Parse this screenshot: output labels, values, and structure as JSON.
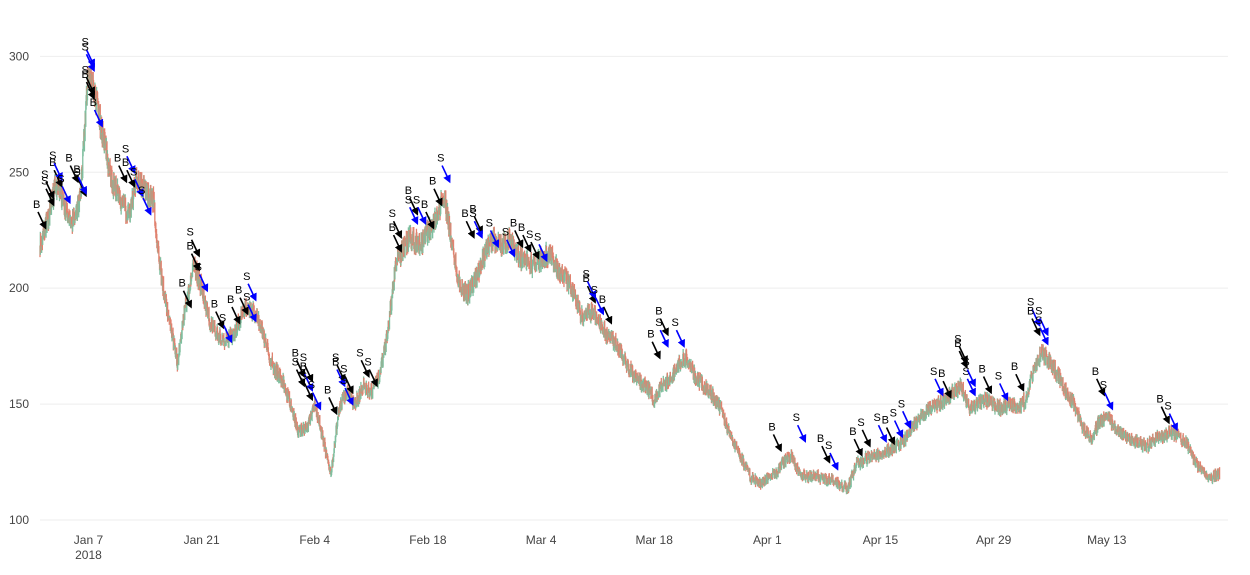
{
  "chart_data": {
    "type": "candlestick",
    "title": "",
    "xlabel": "",
    "ylabel": "",
    "ylim": [
      100,
      320
    ],
    "xlim": [
      "2018-01-01",
      "2018-05-28"
    ],
    "grid": true,
    "legend": "none",
    "colors": {
      "up": "#7fbf9f",
      "down": "#e0826f",
      "buy_arrow": "#000000",
      "sell_arrow": "#0000ff",
      "grid": "#eeeeee"
    },
    "y_ticks": [
      {
        "value": 100,
        "label": "100"
      },
      {
        "value": 150,
        "label": "150"
      },
      {
        "value": 200,
        "label": "200"
      },
      {
        "value": 250,
        "label": "250"
      },
      {
        "value": 300,
        "label": "300"
      }
    ],
    "x_ticks": [
      {
        "date": "2018-01-07",
        "label": "Jan 7",
        "sublabel": "2018"
      },
      {
        "date": "2018-01-21",
        "label": "Jan 21",
        "sublabel": ""
      },
      {
        "date": "2018-02-04",
        "label": "Feb 4",
        "sublabel": ""
      },
      {
        "date": "2018-02-18",
        "label": "Feb 18",
        "sublabel": ""
      },
      {
        "date": "2018-03-04",
        "label": "Mar 4",
        "sublabel": ""
      },
      {
        "date": "2018-03-18",
        "label": "Mar 18",
        "sublabel": ""
      },
      {
        "date": "2018-04-01",
        "label": "Apr 1",
        "sublabel": ""
      },
      {
        "date": "2018-04-15",
        "label": "Apr 15",
        "sublabel": ""
      },
      {
        "date": "2018-04-29",
        "label": "Apr 29",
        "sublabel": ""
      },
      {
        "date": "2018-05-13",
        "label": "May 13",
        "sublabel": ""
      }
    ],
    "price_path": [
      [
        "2018-01-01",
        218
      ],
      [
        "2018-01-02",
        230
      ],
      [
        "2018-01-03",
        245
      ],
      [
        "2018-01-04",
        236
      ],
      [
        "2018-01-05",
        228
      ],
      [
        "2018-01-06",
        240
      ],
      [
        "2018-01-07",
        295
      ],
      [
        "2018-01-08",
        280
      ],
      [
        "2018-01-09",
        262
      ],
      [
        "2018-01-10",
        245
      ],
      [
        "2018-01-11",
        238
      ],
      [
        "2018-01-12",
        232
      ],
      [
        "2018-01-13",
        248
      ],
      [
        "2018-01-14",
        242
      ],
      [
        "2018-01-15",
        238
      ],
      [
        "2018-01-16",
        205
      ],
      [
        "2018-01-17",
        185
      ],
      [
        "2018-01-18",
        168
      ],
      [
        "2018-01-19",
        192
      ],
      [
        "2018-01-20",
        210
      ],
      [
        "2018-01-21",
        200
      ],
      [
        "2018-01-22",
        185
      ],
      [
        "2018-01-23",
        180
      ],
      [
        "2018-01-24",
        178
      ],
      [
        "2018-01-25",
        180
      ],
      [
        "2018-01-26",
        190
      ],
      [
        "2018-01-27",
        192
      ],
      [
        "2018-01-28",
        187
      ],
      [
        "2018-01-29",
        175
      ],
      [
        "2018-01-30",
        165
      ],
      [
        "2018-01-31",
        160
      ],
      [
        "2018-02-01",
        150
      ],
      [
        "2018-02-02",
        138
      ],
      [
        "2018-02-03",
        140
      ],
      [
        "2018-02-04",
        150
      ],
      [
        "2018-02-05",
        135
      ],
      [
        "2018-02-06",
        120
      ],
      [
        "2018-02-07",
        148
      ],
      [
        "2018-02-08",
        155
      ],
      [
        "2018-02-09",
        150
      ],
      [
        "2018-02-10",
        158
      ],
      [
        "2018-02-11",
        155
      ],
      [
        "2018-02-12",
        162
      ],
      [
        "2018-02-13",
        180
      ],
      [
        "2018-02-14",
        210
      ],
      [
        "2018-02-15",
        218
      ],
      [
        "2018-02-16",
        222
      ],
      [
        "2018-02-17",
        218
      ],
      [
        "2018-02-18",
        225
      ],
      [
        "2018-02-19",
        230
      ],
      [
        "2018-02-20",
        240
      ],
      [
        "2018-02-21",
        218
      ],
      [
        "2018-02-22",
        200
      ],
      [
        "2018-02-23",
        198
      ],
      [
        "2018-02-24",
        205
      ],
      [
        "2018-02-25",
        215
      ],
      [
        "2018-02-26",
        222
      ],
      [
        "2018-02-27",
        218
      ],
      [
        "2018-02-28",
        222
      ],
      [
        "2018-03-01",
        215
      ],
      [
        "2018-03-02",
        212
      ],
      [
        "2018-03-03",
        210
      ],
      [
        "2018-03-04",
        213
      ],
      [
        "2018-03-05",
        215
      ],
      [
        "2018-03-06",
        208
      ],
      [
        "2018-03-07",
        205
      ],
      [
        "2018-03-08",
        198
      ],
      [
        "2018-03-09",
        188
      ],
      [
        "2018-03-10",
        190
      ],
      [
        "2018-03-11",
        187
      ],
      [
        "2018-03-12",
        180
      ],
      [
        "2018-03-13",
        178
      ],
      [
        "2018-03-14",
        172
      ],
      [
        "2018-03-15",
        165
      ],
      [
        "2018-03-16",
        160
      ],
      [
        "2018-03-17",
        158
      ],
      [
        "2018-03-18",
        152
      ],
      [
        "2018-03-19",
        158
      ],
      [
        "2018-03-20",
        160
      ],
      [
        "2018-03-21",
        168
      ],
      [
        "2018-03-22",
        170
      ],
      [
        "2018-03-23",
        162
      ],
      [
        "2018-03-24",
        158
      ],
      [
        "2018-03-25",
        155
      ],
      [
        "2018-03-26",
        150
      ],
      [
        "2018-03-27",
        140
      ],
      [
        "2018-03-28",
        132
      ],
      [
        "2018-03-29",
        125
      ],
      [
        "2018-03-30",
        118
      ],
      [
        "2018-03-31",
        116
      ],
      [
        "2018-04-01",
        118
      ],
      [
        "2018-04-02",
        120
      ],
      [
        "2018-04-03",
        125
      ],
      [
        "2018-04-04",
        128
      ],
      [
        "2018-04-05",
        120
      ],
      [
        "2018-04-06",
        118
      ],
      [
        "2018-04-07",
        119
      ],
      [
        "2018-04-08",
        118
      ],
      [
        "2018-04-09",
        117
      ],
      [
        "2018-04-10",
        115
      ],
      [
        "2018-04-11",
        114
      ],
      [
        "2018-04-12",
        124
      ],
      [
        "2018-04-13",
        126
      ],
      [
        "2018-04-14",
        128
      ],
      [
        "2018-04-15",
        128
      ],
      [
        "2018-04-16",
        130
      ],
      [
        "2018-04-17",
        132
      ],
      [
        "2018-04-18",
        135
      ],
      [
        "2018-04-19",
        140
      ],
      [
        "2018-04-20",
        145
      ],
      [
        "2018-04-21",
        148
      ],
      [
        "2018-04-22",
        150
      ],
      [
        "2018-04-23",
        152
      ],
      [
        "2018-04-24",
        155
      ],
      [
        "2018-04-25",
        158
      ],
      [
        "2018-04-26",
        148
      ],
      [
        "2018-04-27",
        150
      ],
      [
        "2018-04-28",
        152
      ],
      [
        "2018-04-29",
        150
      ],
      [
        "2018-04-30",
        148
      ],
      [
        "2018-05-01",
        150
      ],
      [
        "2018-05-02",
        148
      ],
      [
        "2018-05-03",
        152
      ],
      [
        "2018-05-04",
        165
      ],
      [
        "2018-05-05",
        172
      ],
      [
        "2018-05-06",
        168
      ],
      [
        "2018-05-07",
        162
      ],
      [
        "2018-05-08",
        155
      ],
      [
        "2018-05-09",
        150
      ],
      [
        "2018-05-10",
        140
      ],
      [
        "2018-05-11",
        135
      ],
      [
        "2018-05-12",
        142
      ],
      [
        "2018-05-13",
        145
      ],
      [
        "2018-05-14",
        140
      ],
      [
        "2018-05-15",
        137
      ],
      [
        "2018-05-16",
        135
      ],
      [
        "2018-05-17",
        133
      ],
      [
        "2018-05-18",
        132
      ],
      [
        "2018-05-19",
        135
      ],
      [
        "2018-05-20",
        136
      ],
      [
        "2018-05-21",
        138
      ],
      [
        "2018-05-22",
        136
      ],
      [
        "2018-05-23",
        132
      ],
      [
        "2018-05-24",
        125
      ],
      [
        "2018-05-25",
        120
      ],
      [
        "2018-05-26",
        118
      ],
      [
        "2018-05-27",
        120
      ]
    ],
    "markers": [
      {
        "date": "2018-01-01",
        "price": 226,
        "label": "B",
        "side": "buy"
      },
      {
        "date": "2018-01-02",
        "price": 236,
        "label": "S",
        "side": "buy"
      },
      {
        "date": "2018-01-02",
        "price": 239,
        "label": "S",
        "side": "buy"
      },
      {
        "date": "2018-01-03",
        "price": 244,
        "label": "B",
        "side": "buy"
      },
      {
        "date": "2018-01-03",
        "price": 247,
        "label": "S",
        "side": "sell"
      },
      {
        "date": "2018-01-04",
        "price": 237,
        "label": "S",
        "side": "sell"
      },
      {
        "date": "2018-01-05",
        "price": 246,
        "label": "B",
        "side": "buy"
      },
      {
        "date": "2018-01-06",
        "price": 240,
        "label": "S",
        "side": "buy"
      },
      {
        "date": "2018-01-06",
        "price": 241,
        "label": "B",
        "side": "sell"
      },
      {
        "date": "2018-01-07",
        "price": 296,
        "label": "S",
        "side": "sell"
      },
      {
        "date": "2018-01-07",
        "price": 294,
        "label": "S",
        "side": "sell"
      },
      {
        "date": "2018-01-07",
        "price": 284,
        "label": "S",
        "side": "buy"
      },
      {
        "date": "2018-01-07",
        "price": 282,
        "label": "B",
        "side": "buy"
      },
      {
        "date": "2018-01-08",
        "price": 270,
        "label": "B",
        "side": "sell"
      },
      {
        "date": "2018-01-11",
        "price": 246,
        "label": "B",
        "side": "buy"
      },
      {
        "date": "2018-01-12",
        "price": 250,
        "label": "S",
        "side": "sell"
      },
      {
        "date": "2018-01-12",
        "price": 244,
        "label": "B",
        "side": "buy"
      },
      {
        "date": "2018-01-13",
        "price": 240,
        "label": "S",
        "side": "sell"
      },
      {
        "date": "2018-01-14",
        "price": 232,
        "label": "S",
        "side": "sell"
      },
      {
        "date": "2018-01-19",
        "price": 192,
        "label": "B",
        "side": "buy"
      },
      {
        "date": "2018-01-20",
        "price": 208,
        "label": "B",
        "side": "buy"
      },
      {
        "date": "2018-01-20",
        "price": 214,
        "label": "S",
        "side": "buy"
      },
      {
        "date": "2018-01-21",
        "price": 199,
        "label": "S",
        "side": "sell"
      },
      {
        "date": "2018-01-23",
        "price": 183,
        "label": "B",
        "side": "buy"
      },
      {
        "date": "2018-01-24",
        "price": 177,
        "label": "S",
        "side": "sell"
      },
      {
        "date": "2018-01-25",
        "price": 185,
        "label": "B",
        "side": "buy"
      },
      {
        "date": "2018-01-26",
        "price": 189,
        "label": "B",
        "side": "buy"
      },
      {
        "date": "2018-01-27",
        "price": 195,
        "label": "S",
        "side": "sell"
      },
      {
        "date": "2018-01-27",
        "price": 186,
        "label": "S",
        "side": "sell"
      },
      {
        "date": "2018-02-02",
        "price": 162,
        "label": "B",
        "side": "buy"
      },
      {
        "date": "2018-02-02",
        "price": 158,
        "label": "S",
        "side": "buy"
      },
      {
        "date": "2018-02-03",
        "price": 160,
        "label": "S",
        "side": "buy"
      },
      {
        "date": "2018-02-03",
        "price": 156,
        "label": "B",
        "side": "sell"
      },
      {
        "date": "2018-02-03",
        "price": 152,
        "label": "S",
        "side": "buy"
      },
      {
        "date": "2018-02-04",
        "price": 148,
        "label": "S",
        "side": "sell"
      },
      {
        "date": "2018-02-06",
        "price": 146,
        "label": "B",
        "side": "buy"
      },
      {
        "date": "2018-02-07",
        "price": 160,
        "label": "S",
        "side": "buy"
      },
      {
        "date": "2018-02-07",
        "price": 158,
        "label": "B",
        "side": "sell"
      },
      {
        "date": "2018-02-08",
        "price": 150,
        "label": "S",
        "side": "sell"
      },
      {
        "date": "2018-02-08",
        "price": 155,
        "label": "S",
        "side": "buy"
      },
      {
        "date": "2018-02-10",
        "price": 162,
        "label": "S",
        "side": "buy"
      },
      {
        "date": "2018-02-11",
        "price": 158,
        "label": "S",
        "side": "buy"
      },
      {
        "date": "2018-02-14",
        "price": 222,
        "label": "S",
        "side": "buy"
      },
      {
        "date": "2018-02-14",
        "price": 216,
        "label": "B",
        "side": "buy"
      },
      {
        "date": "2018-02-16",
        "price": 232,
        "label": "B",
        "side": "buy"
      },
      {
        "date": "2018-02-16",
        "price": 228,
        "label": "S",
        "side": "sell"
      },
      {
        "date": "2018-02-17",
        "price": 228,
        "label": "S",
        "side": "sell"
      },
      {
        "date": "2018-02-18",
        "price": 226,
        "label": "B",
        "side": "buy"
      },
      {
        "date": "2018-02-19",
        "price": 236,
        "label": "B",
        "side": "buy"
      },
      {
        "date": "2018-02-20",
        "price": 246,
        "label": "S",
        "side": "sell"
      },
      {
        "date": "2018-02-23",
        "price": 222,
        "label": "B",
        "side": "buy"
      },
      {
        "date": "2018-02-24",
        "price": 224,
        "label": "B",
        "side": "buy"
      },
      {
        "date": "2018-02-24",
        "price": 222,
        "label": "S",
        "side": "sell"
      },
      {
        "date": "2018-02-26",
        "price": 218,
        "label": "S",
        "side": "sell"
      },
      {
        "date": "2018-02-28",
        "price": 214,
        "label": "S",
        "side": "sell"
      },
      {
        "date": "2018-03-01",
        "price": 218,
        "label": "B",
        "side": "buy"
      },
      {
        "date": "2018-03-02",
        "price": 216,
        "label": "B",
        "side": "buy"
      },
      {
        "date": "2018-03-03",
        "price": 213,
        "label": "S",
        "side": "buy"
      },
      {
        "date": "2018-03-04",
        "price": 212,
        "label": "S",
        "side": "sell"
      },
      {
        "date": "2018-03-10",
        "price": 194,
        "label": "B",
        "side": "buy"
      },
      {
        "date": "2018-03-10",
        "price": 196,
        "label": "S",
        "side": "sell"
      },
      {
        "date": "2018-03-11",
        "price": 189,
        "label": "S",
        "side": "sell"
      },
      {
        "date": "2018-03-12",
        "price": 185,
        "label": "B",
        "side": "buy"
      },
      {
        "date": "2018-03-18",
        "price": 170,
        "label": "B",
        "side": "buy"
      },
      {
        "date": "2018-03-19",
        "price": 175,
        "label": "S",
        "side": "sell"
      },
      {
        "date": "2018-03-19",
        "price": 180,
        "label": "B",
        "side": "buy"
      },
      {
        "date": "2018-03-21",
        "price": 175,
        "label": "S",
        "side": "sell"
      },
      {
        "date": "2018-04-02",
        "price": 130,
        "label": "B",
        "side": "buy"
      },
      {
        "date": "2018-04-05",
        "price": 134,
        "label": "S",
        "side": "sell"
      },
      {
        "date": "2018-04-08",
        "price": 125,
        "label": "B",
        "side": "buy"
      },
      {
        "date": "2018-04-09",
        "price": 122,
        "label": "S",
        "side": "sell"
      },
      {
        "date": "2018-04-12",
        "price": 128,
        "label": "B",
        "side": "buy"
      },
      {
        "date": "2018-04-13",
        "price": 132,
        "label": "S",
        "side": "buy"
      },
      {
        "date": "2018-04-15",
        "price": 134,
        "label": "S",
        "side": "sell"
      },
      {
        "date": "2018-04-16",
        "price": 133,
        "label": "B",
        "side": "buy"
      },
      {
        "date": "2018-04-17",
        "price": 136,
        "label": "S",
        "side": "sell"
      },
      {
        "date": "2018-04-18",
        "price": 140,
        "label": "S",
        "side": "sell"
      },
      {
        "date": "2018-04-22",
        "price": 154,
        "label": "S",
        "side": "sell"
      },
      {
        "date": "2018-04-23",
        "price": 153,
        "label": "B",
        "side": "buy"
      },
      {
        "date": "2018-04-25",
        "price": 168,
        "label": "S",
        "side": "buy"
      },
      {
        "date": "2018-04-25",
        "price": 166,
        "label": "B",
        "side": "buy"
      },
      {
        "date": "2018-04-26",
        "price": 154,
        "label": "S",
        "side": "sell"
      },
      {
        "date": "2018-04-26",
        "price": 158,
        "label": "S",
        "side": "sell"
      },
      {
        "date": "2018-04-28",
        "price": 155,
        "label": "B",
        "side": "buy"
      },
      {
        "date": "2018-04-30",
        "price": 152,
        "label": "S",
        "side": "sell"
      },
      {
        "date": "2018-05-02",
        "price": 156,
        "label": "B",
        "side": "buy"
      },
      {
        "date": "2018-05-04",
        "price": 184,
        "label": "S",
        "side": "sell"
      },
      {
        "date": "2018-05-04",
        "price": 180,
        "label": "B",
        "side": "buy"
      },
      {
        "date": "2018-05-05",
        "price": 180,
        "label": "S",
        "side": "sell"
      },
      {
        "date": "2018-05-05",
        "price": 176,
        "label": "S",
        "side": "sell"
      },
      {
        "date": "2018-05-12",
        "price": 154,
        "label": "B",
        "side": "buy"
      },
      {
        "date": "2018-05-13",
        "price": 148,
        "label": "S",
        "side": "sell"
      },
      {
        "date": "2018-05-20",
        "price": 142,
        "label": "B",
        "side": "buy"
      },
      {
        "date": "2018-05-21",
        "price": 139,
        "label": "S",
        "side": "sell"
      }
    ]
  }
}
